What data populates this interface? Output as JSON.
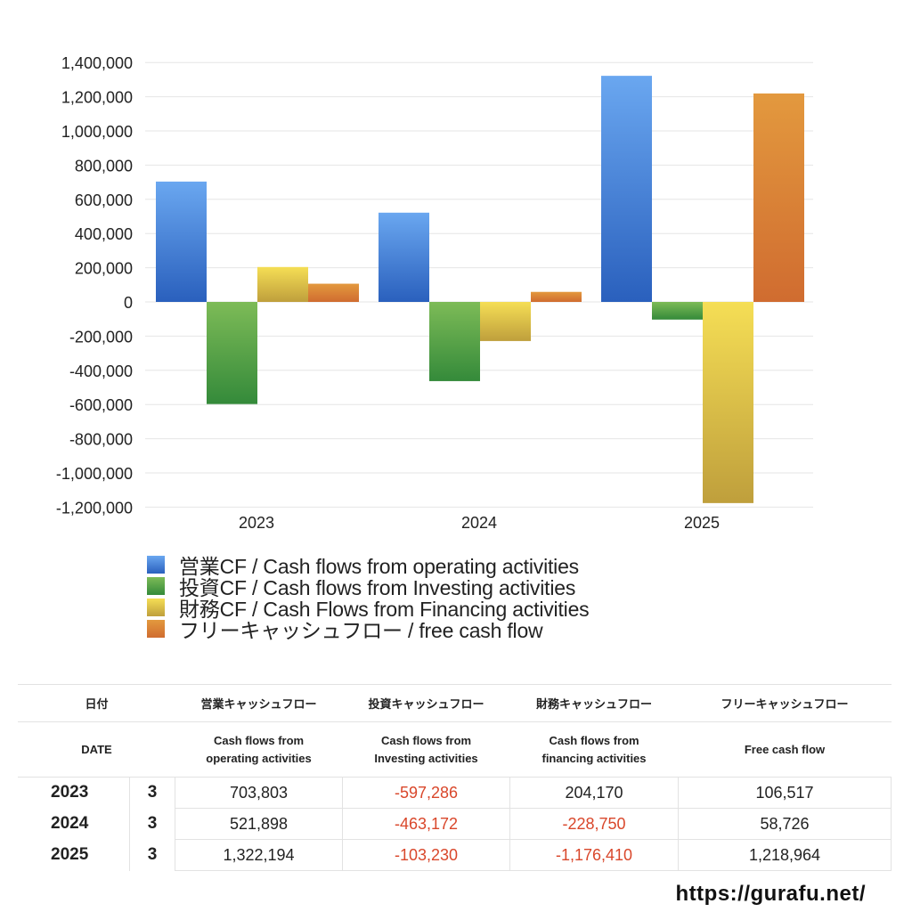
{
  "chart_data": {
    "type": "bar",
    "title": "",
    "xlabel": "",
    "ylabel": "",
    "categories": [
      "2023",
      "2024",
      "2025"
    ],
    "series": [
      {
        "name": "営業CF / Cash flows from operating activities",
        "color_top": "#6aa7f0",
        "color_bottom": "#2a60bd",
        "values": [
          703803,
          521898,
          1322194
        ]
      },
      {
        "name": "投資CF / Cash flows from Investing activities",
        "color_top": "#7dbb57",
        "color_bottom": "#348a3a",
        "values": [
          -597286,
          -463172,
          -103230
        ]
      },
      {
        "name": "財務CF / Cash Flows from Financing activities",
        "color_top": "#f5de55",
        "color_bottom": "#bf9f3c",
        "values": [
          204170,
          -228750,
          -1176410
        ]
      },
      {
        "name": "フリーキャッシュフロー / free cash flow",
        "color_top": "#e3993e",
        "color_bottom": "#d06c30",
        "values": [
          106517,
          58726,
          1218964
        ]
      }
    ],
    "ylim": [
      -1200000,
      1400000
    ],
    "yticks": [
      1400000,
      1200000,
      1000000,
      800000,
      600000,
      400000,
      200000,
      0,
      -200000,
      -400000,
      -600000,
      -800000,
      -1000000,
      -1200000
    ],
    "ytick_labels": [
      "1,400,000",
      "1,200,000",
      "1,000,000",
      "800,000",
      "600,000",
      "400,000",
      "200,000",
      "0",
      "-200,000",
      "-400,000",
      "-600,000",
      "-800,000",
      "-1,000,000",
      "-1,200,000"
    ],
    "grid": true,
    "legend_position": "bottom"
  },
  "legend": [
    {
      "label": "営業CF / Cash flows from operating activities",
      "color": "#3f7fdc"
    },
    {
      "label": "投資CF / Cash flows from Investing activities",
      "color": "#4f9e43"
    },
    {
      "label": "財務CF / Cash Flows from Financing activities",
      "color": "#e0c44a"
    },
    {
      "label": "フリーキャッシュフロー / free cash flow",
      "color": "#db8236"
    }
  ],
  "table": {
    "header_jp": {
      "date": "日付",
      "operating": "営業キャッシュフロー",
      "investing": "投資キャッシュフロー",
      "financing": "財務キャッシュフロー",
      "free": "フリーキャッシュフロー"
    },
    "header_en": {
      "date": "DATE",
      "operating_1": "Cash flows from",
      "operating_2": "operating activities",
      "investing_1": "Cash flows from",
      "investing_2": "Investing activities",
      "financing_1": "Cash flows from",
      "financing_2": "financing activities",
      "free": "Free cash flow"
    },
    "rows": [
      {
        "year": "2023",
        "month": "3",
        "operating": "703,803",
        "investing": "-597,286",
        "financing": "204,170",
        "free": "106,517"
      },
      {
        "year": "2024",
        "month": "3",
        "operating": "521,898",
        "investing": "-463,172",
        "financing": "-228,750",
        "free": "58,726"
      },
      {
        "year": "2025",
        "month": "3",
        "operating": "1,322,194",
        "investing": "-103,230",
        "financing": "-1,176,410",
        "free": "1,218,964"
      }
    ],
    "negative_color": "#d9472b"
  },
  "footer": {
    "url": "https://gurafu.net/"
  }
}
